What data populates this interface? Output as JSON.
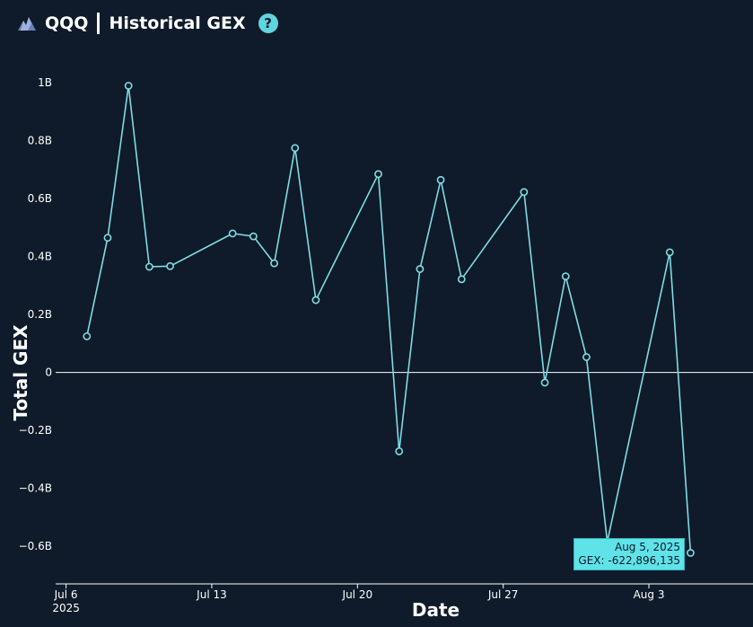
{
  "header": {
    "ticker": "QQQ",
    "title": "Historical GEX",
    "help_icon": "?"
  },
  "colors": {
    "background": "#0f1b2a",
    "line": "#7fdce4",
    "accent": "#5fd5e0",
    "zero_line": "#ffffff"
  },
  "tooltip": {
    "date": "Aug 5, 2025",
    "value_text": "GEX: -622,896,135"
  },
  "chart_data": {
    "type": "line",
    "xlabel": "Date",
    "ylabel": "Total GEX",
    "ylim": [
      -0.73,
      1.1
    ],
    "yticks": [
      {
        "value": 1.0,
        "label": "1B"
      },
      {
        "value": 0.8,
        "label": "0.8B"
      },
      {
        "value": 0.6,
        "label": "0.6B"
      },
      {
        "value": 0.4,
        "label": "0.4B"
      },
      {
        "value": 0.2,
        "label": "0.2B"
      },
      {
        "value": 0.0,
        "label": "0"
      },
      {
        "value": -0.2,
        "label": "−0.2B"
      },
      {
        "value": -0.4,
        "label": "−0.4B"
      },
      {
        "value": -0.6,
        "label": "−0.6B"
      }
    ],
    "xticks": [
      {
        "date": "2025-07-06",
        "label": "Jul 6",
        "sublabel": "2025"
      },
      {
        "date": "2025-07-13",
        "label": "Jul 13"
      },
      {
        "date": "2025-07-20",
        "label": "Jul 20"
      },
      {
        "date": "2025-07-27",
        "label": "Jul 27"
      },
      {
        "date": "2025-08-03",
        "label": "Aug 3"
      }
    ],
    "xlim": [
      "2025-07-05T12:00",
      "2025-08-08T00:00"
    ],
    "y_unit": "B",
    "series": [
      {
        "points": [
          {
            "x": "2025-07-07",
            "y": 0.125
          },
          {
            "x": "2025-07-08",
            "y": 0.465
          },
          {
            "x": "2025-07-09",
            "y": 0.99
          },
          {
            "x": "2025-07-10",
            "y": 0.365
          },
          {
            "x": "2025-07-11",
            "y": 0.367
          },
          {
            "x": "2025-07-14",
            "y": 0.48
          },
          {
            "x": "2025-07-15",
            "y": 0.47
          },
          {
            "x": "2025-07-16",
            "y": 0.377
          },
          {
            "x": "2025-07-17",
            "y": 0.775
          },
          {
            "x": "2025-07-18",
            "y": 0.25
          },
          {
            "x": "2025-07-21",
            "y": 0.685
          },
          {
            "x": "2025-07-22",
            "y": -0.272
          },
          {
            "x": "2025-07-23",
            "y": 0.357
          },
          {
            "x": "2025-07-24",
            "y": 0.665
          },
          {
            "x": "2025-07-25",
            "y": 0.322
          },
          {
            "x": "2025-07-28",
            "y": 0.623
          },
          {
            "x": "2025-07-29",
            "y": -0.035
          },
          {
            "x": "2025-07-30",
            "y": 0.332
          },
          {
            "x": "2025-07-31",
            "y": 0.053
          },
          {
            "x": "2025-08-01",
            "y": -0.585
          },
          {
            "x": "2025-08-04",
            "y": 0.415
          },
          {
            "x": "2025-08-05",
            "y": -0.623
          }
        ]
      }
    ]
  }
}
